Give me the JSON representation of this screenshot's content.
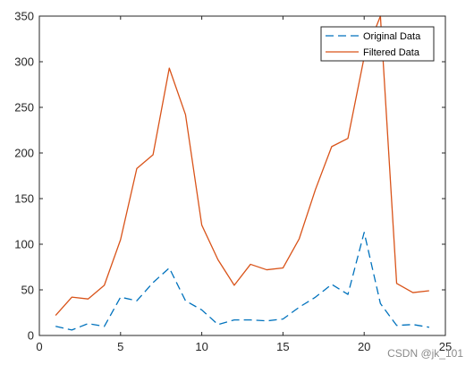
{
  "chart_data": {
    "type": "line",
    "x": [
      1,
      2,
      3,
      4,
      5,
      6,
      7,
      8,
      9,
      10,
      11,
      12,
      13,
      14,
      15,
      16,
      17,
      18,
      19,
      20,
      21,
      22,
      23,
      24
    ],
    "series": [
      {
        "name": "Original Data",
        "color": "#0072BD",
        "line_style": "dashed",
        "values": [
          10,
          6,
          13,
          10,
          42,
          38,
          58,
          74,
          38,
          28,
          12,
          17,
          17,
          16,
          18,
          31,
          42,
          56,
          45,
          113,
          35,
          11,
          12,
          9
        ]
      },
      {
        "name": "Filtered Data",
        "color": "#D95319",
        "line_style": "solid",
        "values": [
          22,
          42,
          40,
          55,
          105,
          183,
          198,
          293,
          242,
          121,
          83,
          55,
          78,
          72,
          74,
          106,
          160,
          207,
          216,
          305,
          350,
          57,
          47,
          49
        ]
      }
    ],
    "xlim": [
      0,
      25
    ],
    "ylim": [
      0,
      350
    ],
    "xticks": [
      "0",
      "5",
      "10",
      "15",
      "20",
      "25"
    ],
    "yticks": [
      "0",
      "50",
      "100",
      "150",
      "200",
      "250",
      "300",
      "350"
    ],
    "grid": false,
    "legend_position": "top-right",
    "title": "",
    "xlabel": "",
    "ylabel": ""
  },
  "watermark": "CSDN @jk_101"
}
